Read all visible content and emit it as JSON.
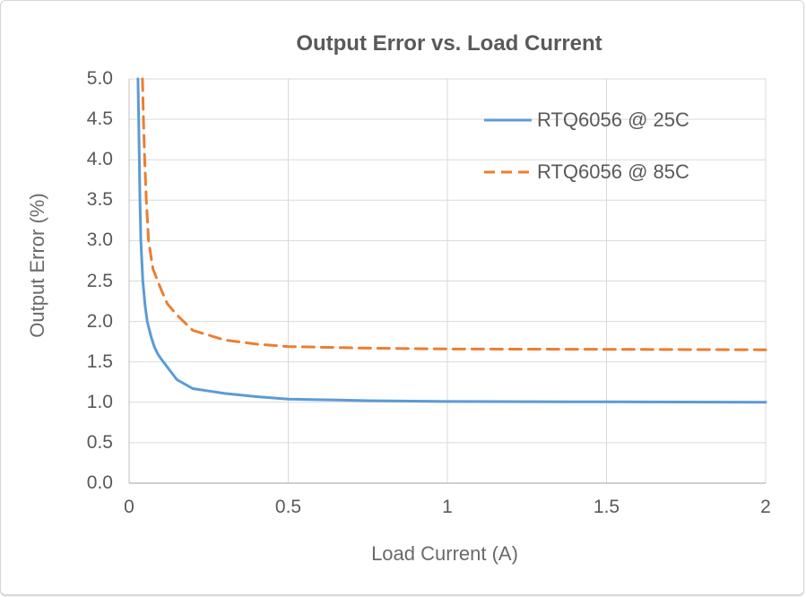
{
  "window": {
    "background": "#FFFFFF",
    "border_color": "#D6D6D6"
  },
  "chart_data": {
    "type": "line",
    "title": "Output Error vs. Load Current",
    "xlabel": "Load Current (A)",
    "ylabel": "Output Error (%)",
    "xlim": [
      0,
      2
    ],
    "ylim": [
      0,
      5
    ],
    "grid": true,
    "legend_position": "inside-top-right",
    "x_ticks": [
      {
        "value": 0,
        "label": "0"
      },
      {
        "value": 0.5,
        "label": "0.5"
      },
      {
        "value": 1,
        "label": "1"
      },
      {
        "value": 1.5,
        "label": "1.5"
      },
      {
        "value": 2,
        "label": "2"
      }
    ],
    "y_ticks": [
      {
        "value": 0,
        "label": "0.0"
      },
      {
        "value": 0.5,
        "label": "0.5"
      },
      {
        "value": 1,
        "label": "1.0"
      },
      {
        "value": 1.5,
        "label": "1.5"
      },
      {
        "value": 2,
        "label": "2.0"
      },
      {
        "value": 2.5,
        "label": "2.5"
      },
      {
        "value": 3,
        "label": "3.0"
      },
      {
        "value": 3.5,
        "label": "3.5"
      },
      {
        "value": 4,
        "label": "4.0"
      },
      {
        "value": 4.5,
        "label": "4.5"
      },
      {
        "value": 5,
        "label": "5.0"
      }
    ],
    "series": [
      {
        "name": "RTQ6056 @ 25C",
        "color": "#5B9BD5",
        "style": "solid",
        "points": [
          [
            0.028,
            5.0
          ],
          [
            0.03,
            4.5
          ],
          [
            0.032,
            4.0
          ],
          [
            0.034,
            3.5
          ],
          [
            0.037,
            3.0
          ],
          [
            0.043,
            2.5
          ],
          [
            0.05,
            2.2
          ],
          [
            0.057,
            2.0
          ],
          [
            0.07,
            1.8
          ],
          [
            0.08,
            1.68
          ],
          [
            0.09,
            1.6
          ],
          [
            0.1,
            1.54
          ],
          [
            0.15,
            1.28
          ],
          [
            0.2,
            1.17
          ],
          [
            0.25,
            1.14
          ],
          [
            0.3,
            1.11
          ],
          [
            0.4,
            1.07
          ],
          [
            0.5,
            1.04
          ],
          [
            0.75,
            1.02
          ],
          [
            1.0,
            1.01
          ],
          [
            1.5,
            1.005
          ],
          [
            2.0,
            1.0
          ]
        ]
      },
      {
        "name": "RTQ6056 @ 85C",
        "color": "#ED7D31",
        "style": "dashed",
        "points": [
          [
            0.042,
            5.0
          ],
          [
            0.045,
            4.5
          ],
          [
            0.049,
            4.0
          ],
          [
            0.054,
            3.5
          ],
          [
            0.061,
            3.0
          ],
          [
            0.075,
            2.65
          ],
          [
            0.09,
            2.5
          ],
          [
            0.1,
            2.4
          ],
          [
            0.12,
            2.22
          ],
          [
            0.15,
            2.08
          ],
          [
            0.2,
            1.89
          ],
          [
            0.25,
            1.83
          ],
          [
            0.3,
            1.77
          ],
          [
            0.4,
            1.72
          ],
          [
            0.5,
            1.69
          ],
          [
            0.75,
            1.67
          ],
          [
            1.0,
            1.66
          ],
          [
            1.5,
            1.655
          ],
          [
            2.0,
            1.65
          ]
        ]
      }
    ],
    "colors": {
      "series_25c": "#5B9BD5",
      "series_85c": "#ED7D31",
      "text": "#595959",
      "gridline": "#D9D9D9",
      "axis": "#BFBFBF",
      "background": "#FFFFFF"
    }
  }
}
